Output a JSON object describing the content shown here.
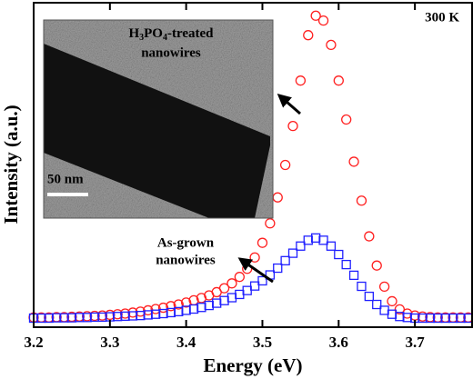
{
  "chart_data": {
    "type": "scatter",
    "xlabel": "Energy (eV)",
    "ylabel": "Intensity (a.u.)",
    "xlim": [
      3.2,
      3.775
    ],
    "ylim": [
      0,
      1
    ],
    "xticks": [
      3.2,
      3.3,
      3.4,
      3.5,
      3.6,
      3.7
    ],
    "annotations": {
      "temperature": "300 K",
      "as_grown": [
        "As-grown",
        "nanowires"
      ],
      "treated": [
        "H3PO4-treated",
        "nanowires"
      ],
      "scale_bar": "50 nm"
    },
    "x": [
      3.2,
      3.21,
      3.22,
      3.23,
      3.24,
      3.25,
      3.26,
      3.27,
      3.28,
      3.29,
      3.3,
      3.31,
      3.32,
      3.33,
      3.34,
      3.35,
      3.36,
      3.37,
      3.38,
      3.39,
      3.4,
      3.41,
      3.42,
      3.43,
      3.44,
      3.45,
      3.46,
      3.47,
      3.48,
      3.49,
      3.5,
      3.51,
      3.52,
      3.53,
      3.54,
      3.55,
      3.56,
      3.57,
      3.58,
      3.59,
      3.6,
      3.61,
      3.62,
      3.63,
      3.64,
      3.65,
      3.66,
      3.67,
      3.68,
      3.69,
      3.7,
      3.71,
      3.72,
      3.73,
      3.74,
      3.75,
      3.76,
      3.77
    ],
    "series": [
      {
        "name": "H3PO4-treated nanowires",
        "color": "#ff2020",
        "marker": "circle",
        "values": [
          0.03,
          0.03,
          0.03,
          0.031,
          0.031,
          0.032,
          0.033,
          0.034,
          0.035,
          0.036,
          0.038,
          0.04,
          0.042,
          0.045,
          0.048,
          0.052,
          0.056,
          0.06,
          0.065,
          0.07,
          0.076,
          0.083,
          0.09,
          0.098,
          0.108,
          0.12,
          0.135,
          0.155,
          0.18,
          0.215,
          0.26,
          0.32,
          0.4,
          0.5,
          0.62,
          0.76,
          0.9,
          0.96,
          0.945,
          0.87,
          0.76,
          0.64,
          0.51,
          0.39,
          0.28,
          0.19,
          0.125,
          0.08,
          0.055,
          0.042,
          0.036,
          0.033,
          0.031,
          0.03,
          0.03,
          0.03,
          0.03,
          0.03
        ]
      },
      {
        "name": "As-grown nanowires",
        "color": "#2020ff",
        "marker": "square",
        "values": [
          0.028,
          0.028,
          0.028,
          0.029,
          0.029,
          0.029,
          0.03,
          0.03,
          0.031,
          0.031,
          0.032,
          0.033,
          0.034,
          0.035,
          0.036,
          0.038,
          0.04,
          0.042,
          0.045,
          0.048,
          0.052,
          0.056,
          0.061,
          0.067,
          0.074,
          0.082,
          0.091,
          0.101,
          0.113,
          0.127,
          0.143,
          0.161,
          0.182,
          0.205,
          0.228,
          0.25,
          0.268,
          0.275,
          0.268,
          0.25,
          0.224,
          0.193,
          0.16,
          0.126,
          0.095,
          0.07,
          0.052,
          0.04,
          0.033,
          0.03,
          0.028,
          0.028,
          0.028,
          0.028,
          0.028,
          0.028,
          0.028,
          0.028
        ]
      }
    ]
  }
}
